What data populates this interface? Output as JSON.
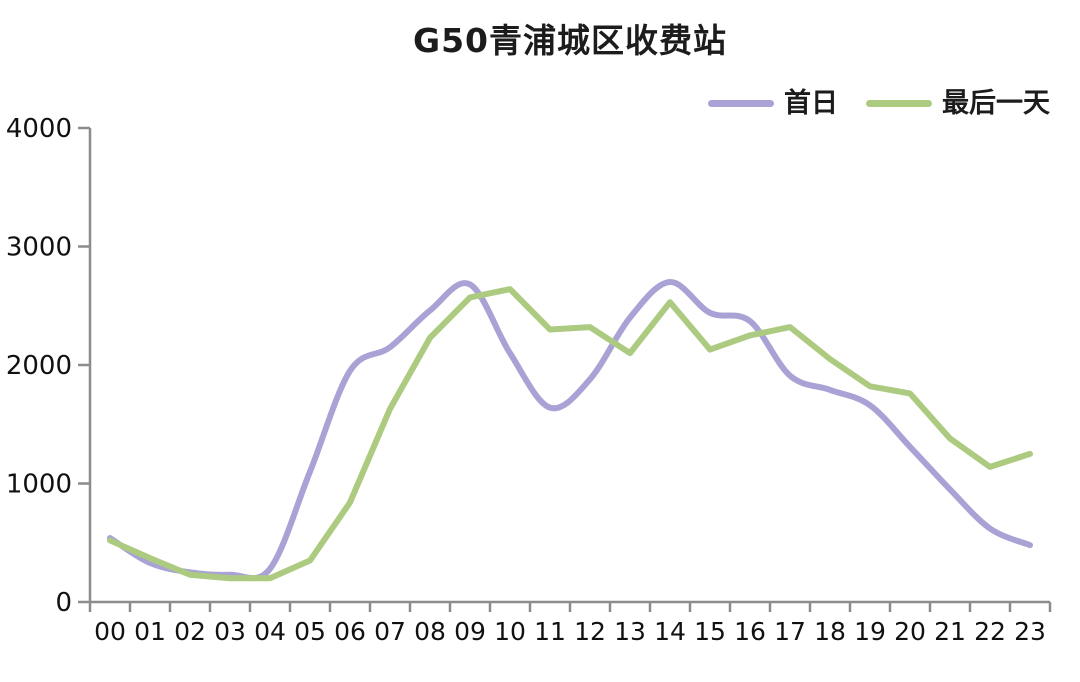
{
  "title": "G50青浦城区收费站",
  "legend": {
    "items": [
      {
        "id": "first-day",
        "label": "首日",
        "color": "#a9a2d5"
      },
      {
        "id": "last-day",
        "label": "最后一天",
        "color": "#adcb80"
      }
    ]
  },
  "chart_data": {
    "type": "line",
    "title": "G50青浦城区收费站",
    "xlabel": "",
    "ylabel": "",
    "x": [
      "00",
      "01",
      "02",
      "03",
      "04",
      "05",
      "06",
      "07",
      "08",
      "09",
      "10",
      "11",
      "12",
      "13",
      "14",
      "15",
      "16",
      "17",
      "18",
      "19",
      "20",
      "21",
      "22",
      "23"
    ],
    "ylim": [
      0,
      4000
    ],
    "y_ticks": [
      0,
      1000,
      2000,
      3000,
      4000
    ],
    "grid": false,
    "legend_position": "top-right",
    "series": [
      {
        "id": "first-day",
        "name": "首日",
        "color": "#a9a2d5",
        "smooth": true,
        "values": [
          540,
          330,
          250,
          230,
          280,
          1100,
          1950,
          2150,
          2460,
          2680,
          2100,
          1640,
          1880,
          2400,
          2700,
          2440,
          2370,
          1910,
          1790,
          1660,
          1310,
          950,
          620,
          480
        ]
      },
      {
        "id": "last-day",
        "name": "最后一天",
        "color": "#adcb80",
        "smooth": false,
        "values": [
          520,
          370,
          230,
          200,
          200,
          350,
          840,
          1630,
          2230,
          2570,
          2640,
          2300,
          2320,
          2100,
          2530,
          2130,
          2250,
          2320,
          2050,
          1820,
          1760,
          1380,
          1140,
          1250
        ]
      }
    ]
  },
  "style": {
    "axis_color": "#8c8c8c",
    "text_color": "#111111",
    "background": "#ffffff"
  }
}
